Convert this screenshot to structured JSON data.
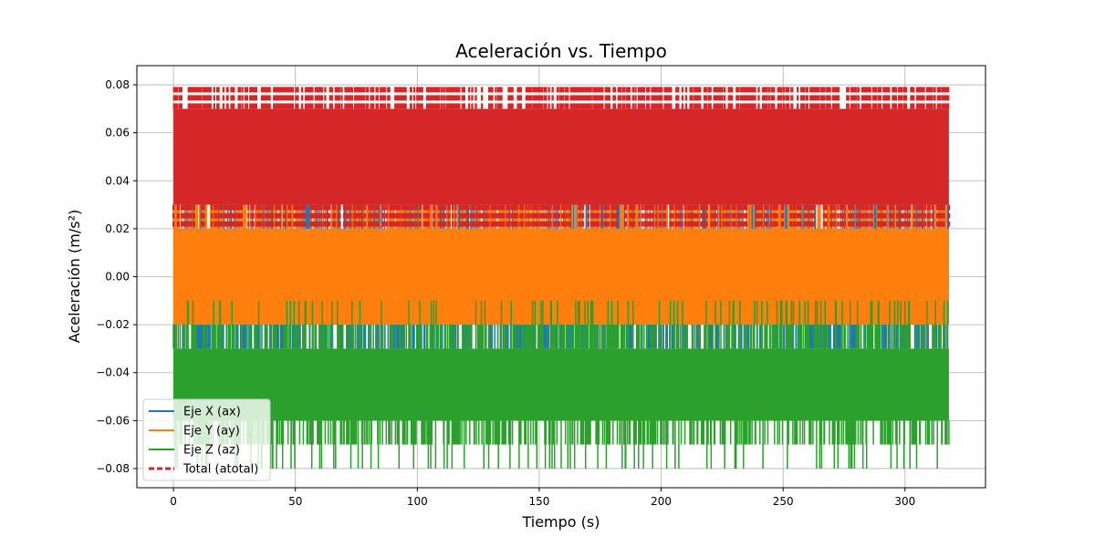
{
  "chart_data": {
    "type": "line",
    "title": "Aceleración vs. Tiempo",
    "xlabel": "Tiempo (s)",
    "ylabel": "Aceleración (m/s²)",
    "xlim": [
      -15,
      333
    ],
    "ylim": [
      -0.088,
      0.088
    ],
    "xticks": [
      0,
      50,
      100,
      150,
      200,
      250,
      300
    ],
    "yticks": [
      -0.08,
      -0.06,
      -0.04,
      -0.02,
      0.0,
      0.02,
      0.04,
      0.06,
      0.08
    ],
    "ytick_labels": [
      "−0.08",
      "−0.06",
      "−0.04",
      "−0.02",
      "0.00",
      "0.02",
      "0.04",
      "0.06",
      "0.08"
    ],
    "grid": true,
    "legend_position": "lower-left",
    "x_range": [
      0,
      318
    ],
    "series": [
      {
        "name": "Eje X (ax)",
        "color": "#1f77b4",
        "style": "solid",
        "band": [
          -0.02,
          0.02
        ],
        "spikes": [
          -0.03,
          0.03
        ]
      },
      {
        "name": "Eje Y (ay)",
        "color": "#ff7f0e",
        "style": "solid",
        "band": [
          -0.02,
          0.02
        ],
        "core": [
          -0.01,
          0.01
        ],
        "spikes": [
          -0.02,
          0.03
        ]
      },
      {
        "name": "Eje Z (az)",
        "color": "#2ca02c",
        "style": "solid",
        "band": [
          -0.06,
          -0.03
        ],
        "spikes": [
          -0.08,
          -0.01
        ]
      },
      {
        "name": "Total (atotal)",
        "color": "#d62728",
        "style": "dashed",
        "band": [
          0.03,
          0.07
        ],
        "spikes": [
          0.02,
          0.08
        ]
      }
    ]
  }
}
